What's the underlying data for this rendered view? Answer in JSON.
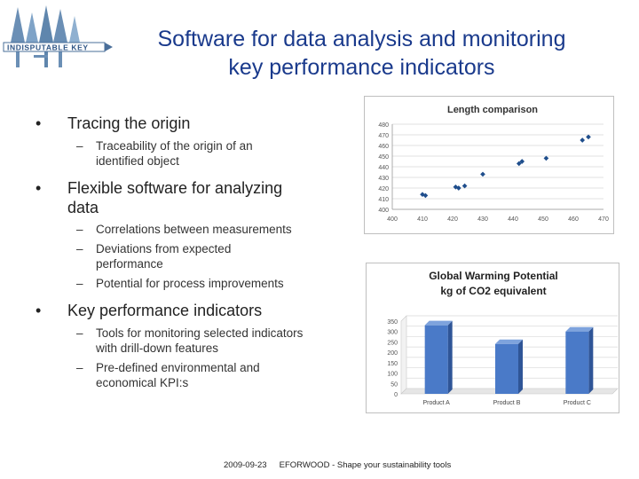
{
  "logo": {
    "text": "INDISPUTABLE KEY"
  },
  "slide": {
    "title_line1": "Software for data analysis and monitoring",
    "title_line2": "key performance indicators"
  },
  "bullets": [
    {
      "text": "Tracing the origin",
      "subs": [
        "Traceability of the origin of an identified object"
      ]
    },
    {
      "text": "Flexible software for analyzing data",
      "subs": [
        "Correlations between measurements",
        "Deviations from expected performance",
        "Potential for process improvements"
      ]
    },
    {
      "text": "Key performance indicators",
      "subs": [
        "Tools for monitoring selected indicators with drill-down features",
        "Pre-defined environmental and economical KPI:s"
      ]
    }
  ],
  "footer": {
    "date": "2009-09-23",
    "text": "EFORWOOD - Shape your sustainability tools"
  },
  "chart_data": [
    {
      "type": "scatter",
      "title": "Length comparison",
      "xlim": [
        400,
        470
      ],
      "ylim": [
        400,
        480
      ],
      "x_ticks": [
        "400",
        "410",
        "420",
        "430",
        "440",
        "450",
        "460",
        "470"
      ],
      "y_ticks": [
        "480",
        "470",
        "460",
        "450",
        "440",
        "430",
        "420",
        "410",
        "400"
      ],
      "grid": "horizontal",
      "points": [
        {
          "x": 410,
          "y": 414
        },
        {
          "x": 411,
          "y": 413
        },
        {
          "x": 421,
          "y": 421
        },
        {
          "x": 422,
          "y": 420
        },
        {
          "x": 424,
          "y": 422
        },
        {
          "x": 430,
          "y": 433
        },
        {
          "x": 442,
          "y": 443
        },
        {
          "x": 443,
          "y": 445
        },
        {
          "x": 451,
          "y": 448
        },
        {
          "x": 463,
          "y": 465
        },
        {
          "x": 465,
          "y": 468
        }
      ],
      "color": "#1f4e8c"
    },
    {
      "type": "bar",
      "title": "Global Warming Potential",
      "subtitle": "kg of CO2 equivalent",
      "categories": [
        "Product A",
        "Product B",
        "Product C"
      ],
      "values": [
        330,
        240,
        300
      ],
      "ylim": [
        0,
        350
      ],
      "y_ticks": [
        "350",
        "300",
        "250",
        "200",
        "150",
        "100",
        "50",
        "0"
      ],
      "grid": "horizontal",
      "color": "#4a7ac8"
    }
  ]
}
